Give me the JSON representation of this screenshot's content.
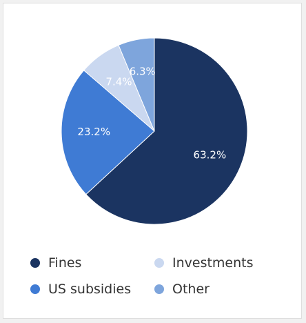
{
  "chart_data": {
    "type": "pie",
    "title": "",
    "slices": [
      {
        "name": "Fines",
        "value": 63.2,
        "label": "63.2%",
        "color": "#1b3461"
      },
      {
        "name": "US subsidies",
        "value": 23.2,
        "label": "23.2%",
        "color": "#3f7bd4"
      },
      {
        "name": "Investments",
        "value": 7.4,
        "label": "7.4%",
        "color": "#cad8f0"
      },
      {
        "name": "Other",
        "value": 6.3,
        "label": "6.3%",
        "color": "#7ea5dc"
      }
    ],
    "legend_placement": "bottom",
    "legend_order": [
      "Fines",
      "Investments",
      "US subsidies",
      "Other"
    ]
  }
}
